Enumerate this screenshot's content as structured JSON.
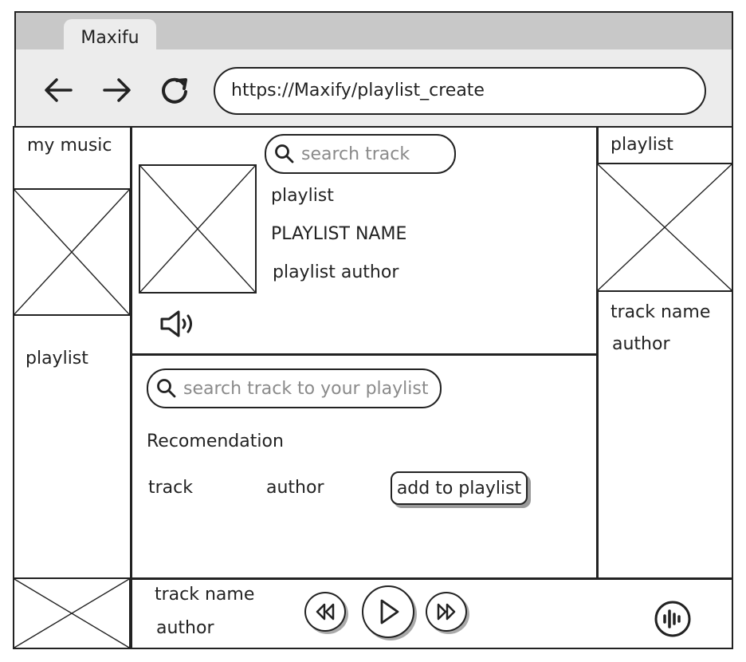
{
  "browser": {
    "tab_title": "Maxifu",
    "url": "https://Maxify/playlist_create"
  },
  "left_sidebar": {
    "title": "my music",
    "playlist_label": "playlist"
  },
  "playlist_header": {
    "search_placeholder": "search track",
    "type_label": "playlist",
    "name": "PLAYLIST NAME",
    "author": "playlist author"
  },
  "recommendations": {
    "search_placeholder": "search track to your playlist",
    "heading": "Recomendation",
    "row": {
      "track": "track",
      "author": "author",
      "add_button": "add to playlist"
    }
  },
  "right_sidebar": {
    "title": "playlist",
    "track_name": "track name",
    "author": "author"
  },
  "player": {
    "track_name": "track name",
    "author": "author"
  },
  "icons": [
    "back-arrow-icon",
    "forward-arrow-icon",
    "reload-icon",
    "search-icon",
    "volume-icon",
    "rewind-icon",
    "play-icon",
    "fast-forward-icon",
    "sound-wave-icon"
  ]
}
